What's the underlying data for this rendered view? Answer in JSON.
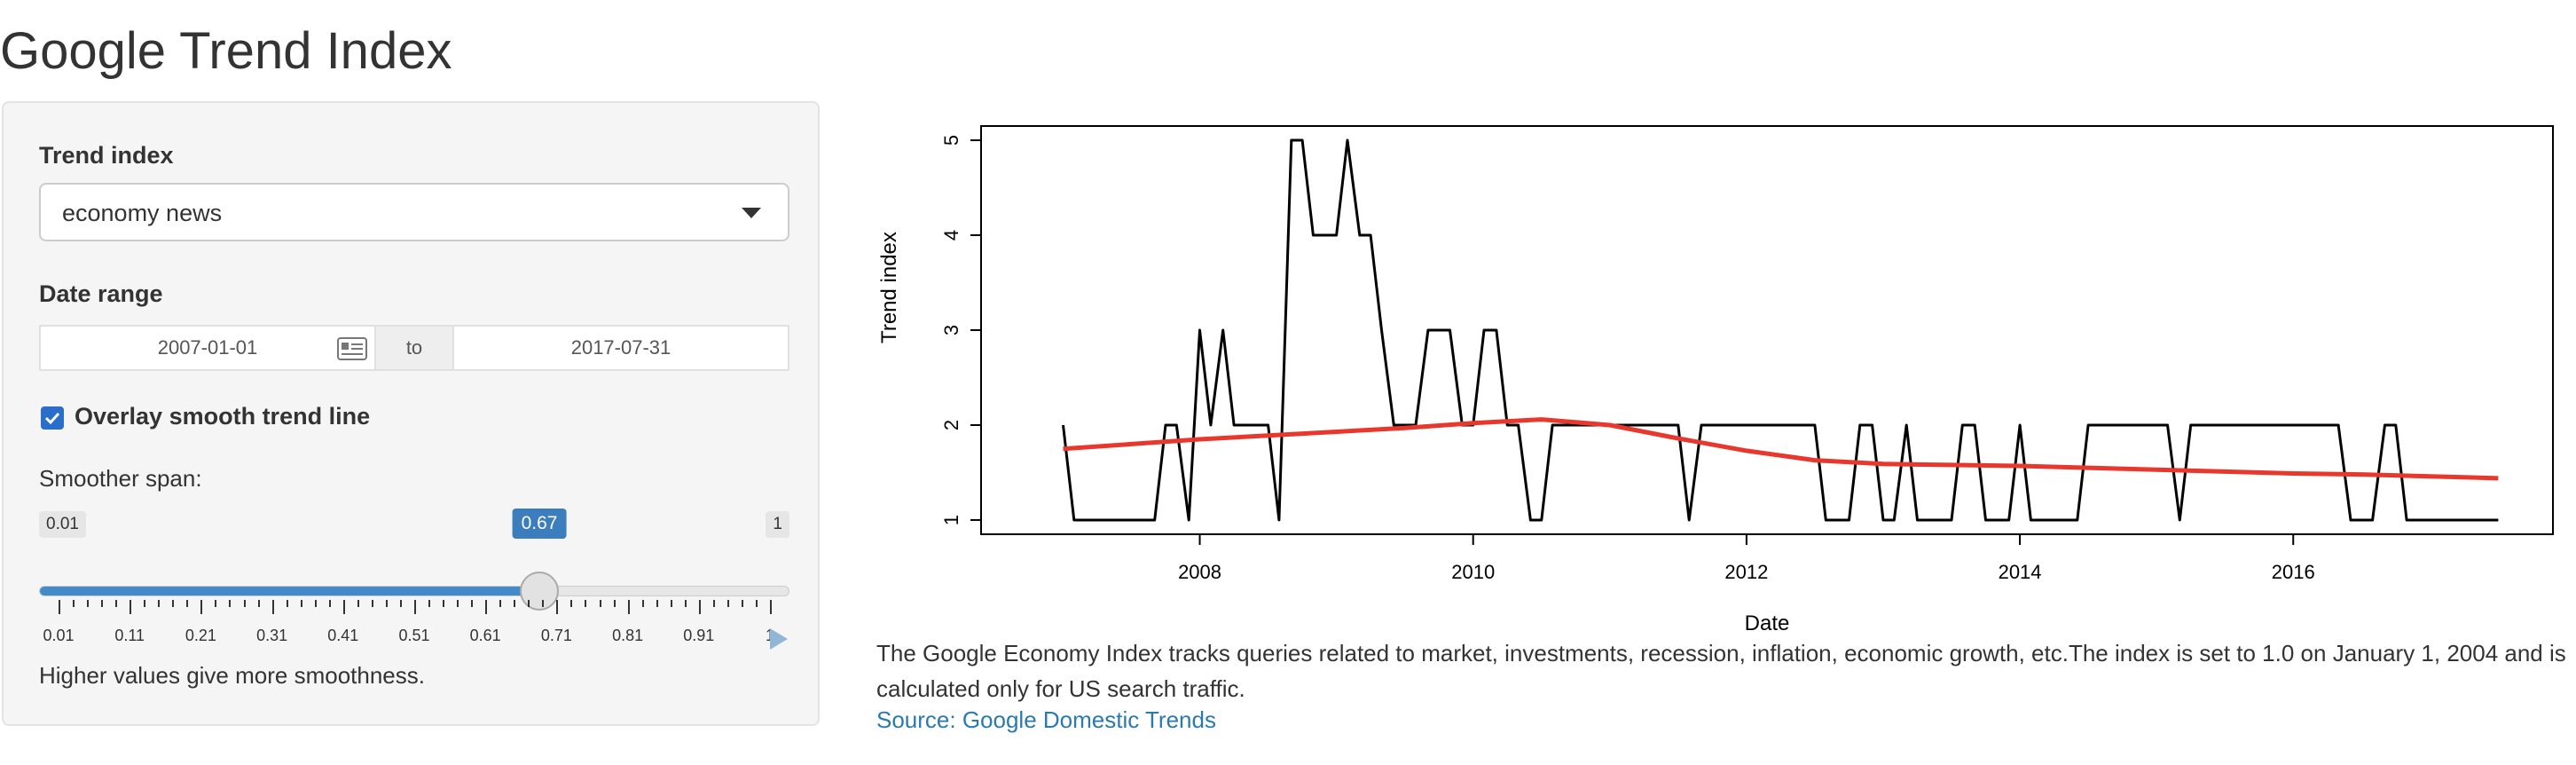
{
  "app_title": "Google Trend Index",
  "sidebar": {
    "trend_label": "Trend index",
    "trend_selected": "economy news",
    "date_label": "Date range",
    "date_start": "2007-01-01",
    "date_separator": "to",
    "date_end": "2017-07-31",
    "smooth_checkbox_label": "Overlay smooth trend line",
    "smooth_checked": true,
    "smoother_label": "Smoother span:",
    "slider": {
      "min_label": "0.01",
      "max_label": "1",
      "value_label": "0.67",
      "min": 0.01,
      "max": 1,
      "value": 0.67,
      "tick_labels": [
        "0.01",
        "0.11",
        "0.21",
        "0.31",
        "0.41",
        "0.51",
        "0.61",
        "0.71",
        "0.81",
        "0.91",
        "1"
      ]
    },
    "help_text": "Higher values give more smoothness.",
    "accent_color": "#428bca"
  },
  "main": {
    "description": "The Google Economy Index tracks queries related to market, investments, recession, inflation, economic growth, etc.The index is set to 1.0 on January 1, 2004 and is calculated only for US search traffic.",
    "source_link": "Source: Google Domestic Trends"
  },
  "chart_data": {
    "type": "line",
    "title": "",
    "xlabel": "Date",
    "ylabel": "Trend index",
    "x_ticks": [
      "2008",
      "2010",
      "2012",
      "2014",
      "2016"
    ],
    "y_ticks": [
      "1",
      "2",
      "3",
      "4",
      "5"
    ],
    "xlim": [
      2006.4,
      2017.9
    ],
    "ylim": [
      0.85,
      5.15
    ],
    "series": [
      {
        "color": "#000000",
        "x": [
          2007.0,
          2007.08,
          2007.17,
          2007.25,
          2007.33,
          2007.42,
          2007.5,
          2007.58,
          2007.67,
          2007.75,
          2007.83,
          2007.92,
          2008.0,
          2008.08,
          2008.17,
          2008.25,
          2008.33,
          2008.42,
          2008.5,
          2008.58,
          2008.67,
          2008.75,
          2008.83,
          2008.92,
          2009.0,
          2009.08,
          2009.17,
          2009.25,
          2009.33,
          2009.42,
          2009.5,
          2009.58,
          2009.67,
          2009.75,
          2009.83,
          2009.92,
          2010.0,
          2010.08,
          2010.17,
          2010.25,
          2010.33,
          2010.42,
          2010.5,
          2010.58,
          2010.67,
          2010.75,
          2010.83,
          2010.92,
          2011.0,
          2011.08,
          2011.17,
          2011.25,
          2011.33,
          2011.42,
          2011.5,
          2011.58,
          2011.67,
          2011.75,
          2011.83,
          2011.92,
          2012.0,
          2012.08,
          2012.17,
          2012.25,
          2012.33,
          2012.42,
          2012.5,
          2012.58,
          2012.67,
          2012.75,
          2012.83,
          2012.92,
          2013.0,
          2013.08,
          2013.17,
          2013.25,
          2013.33,
          2013.42,
          2013.5,
          2013.58,
          2013.67,
          2013.75,
          2013.83,
          2013.92,
          2014.0,
          2014.08,
          2014.17,
          2014.25,
          2014.33,
          2014.42,
          2014.5,
          2014.58,
          2014.67,
          2014.75,
          2014.83,
          2014.92,
          2015.0,
          2015.08,
          2015.17,
          2015.25,
          2015.33,
          2015.42,
          2015.5,
          2015.58,
          2015.67,
          2015.75,
          2015.83,
          2015.92,
          2016.0,
          2016.08,
          2016.17,
          2016.25,
          2016.33,
          2016.42,
          2016.5,
          2016.58,
          2016.67,
          2016.75,
          2016.83,
          2016.92,
          2017.0,
          2017.08,
          2017.17,
          2017.25,
          2017.33,
          2017.42,
          2017.5
        ],
        "y": [
          2,
          1,
          1,
          1,
          1,
          1,
          1,
          1,
          1,
          2,
          2,
          1,
          3,
          2,
          3,
          2,
          2,
          2,
          2,
          1,
          5,
          5,
          4,
          4,
          4,
          5,
          4,
          4,
          3,
          2,
          2,
          2,
          3,
          3,
          3,
          2,
          2,
          3,
          3,
          2,
          2,
          1,
          1,
          2,
          2,
          2,
          2,
          2,
          2,
          2,
          2,
          2,
          2,
          2,
          2,
          1,
          2,
          2,
          2,
          2,
          2,
          2,
          2,
          2,
          2,
          2,
          2,
          1,
          1,
          1,
          2,
          2,
          1,
          1,
          2,
          1,
          1,
          1,
          1,
          2,
          2,
          1,
          1,
          1,
          2,
          1,
          1,
          1,
          1,
          1,
          2,
          2,
          2,
          2,
          2,
          2,
          2,
          2,
          1,
          2,
          2,
          2,
          2,
          2,
          2,
          2,
          2,
          2,
          2,
          2,
          2,
          2,
          2,
          1,
          1,
          1,
          2,
          2,
          1,
          1,
          1,
          1,
          1,
          1,
          1,
          1,
          1
        ]
      },
      {
        "color": "#e8372c",
        "x": [
          2007.0,
          2007.5,
          2008.0,
          2008.5,
          2009.0,
          2009.5,
          2010.0,
          2010.5,
          2011.0,
          2011.5,
          2012.0,
          2012.5,
          2013.0,
          2013.5,
          2014.0,
          2014.5,
          2015.0,
          2015.5,
          2016.0,
          2016.5,
          2017.0,
          2017.5
        ],
        "y": [
          1.75,
          1.8,
          1.85,
          1.89,
          1.93,
          1.97,
          2.02,
          2.06,
          2.0,
          1.86,
          1.73,
          1.63,
          1.59,
          1.58,
          1.57,
          1.55,
          1.53,
          1.51,
          1.49,
          1.48,
          1.46,
          1.44
        ]
      }
    ]
  }
}
